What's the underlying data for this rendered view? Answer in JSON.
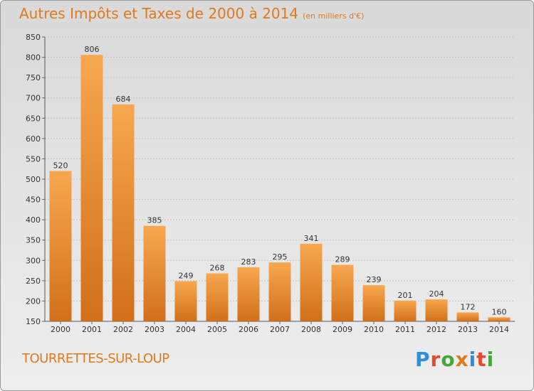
{
  "header": {
    "title": "Autres Impôts et Taxes de 2000 à 2014",
    "unit": "(en milliers d'€)"
  },
  "footer": {
    "town": "TOURRETTES-SUR-LOUP",
    "logo": "Proxiti"
  },
  "colors": {
    "accent": "#e07a1c",
    "bar_top": "#f7a84f",
    "bar_bottom": "#d26f1a",
    "logo_letters": [
      "#2f8fd6",
      "#e24b2b",
      "#49a43c",
      "#e07a1c",
      "#2f8fd6",
      "#e24b2b",
      "#49a43c"
    ]
  },
  "chart_data": {
    "type": "bar",
    "title": "Autres Impôts et Taxes de 2000 à 2014",
    "categories": [
      "2000",
      "2001",
      "2002",
      "2003",
      "2004",
      "2005",
      "2006",
      "2007",
      "2008",
      "2009",
      "2010",
      "2011",
      "2012",
      "2013",
      "2014"
    ],
    "values": [
      520,
      806,
      684,
      385,
      249,
      268,
      283,
      295,
      341,
      289,
      239,
      201,
      204,
      172,
      160
    ],
    "ylim": [
      150,
      850
    ],
    "yticks": [
      150,
      200,
      250,
      300,
      350,
      400,
      450,
      500,
      550,
      600,
      650,
      700,
      750,
      800,
      850
    ],
    "grid": true,
    "data_labels": true
  }
}
